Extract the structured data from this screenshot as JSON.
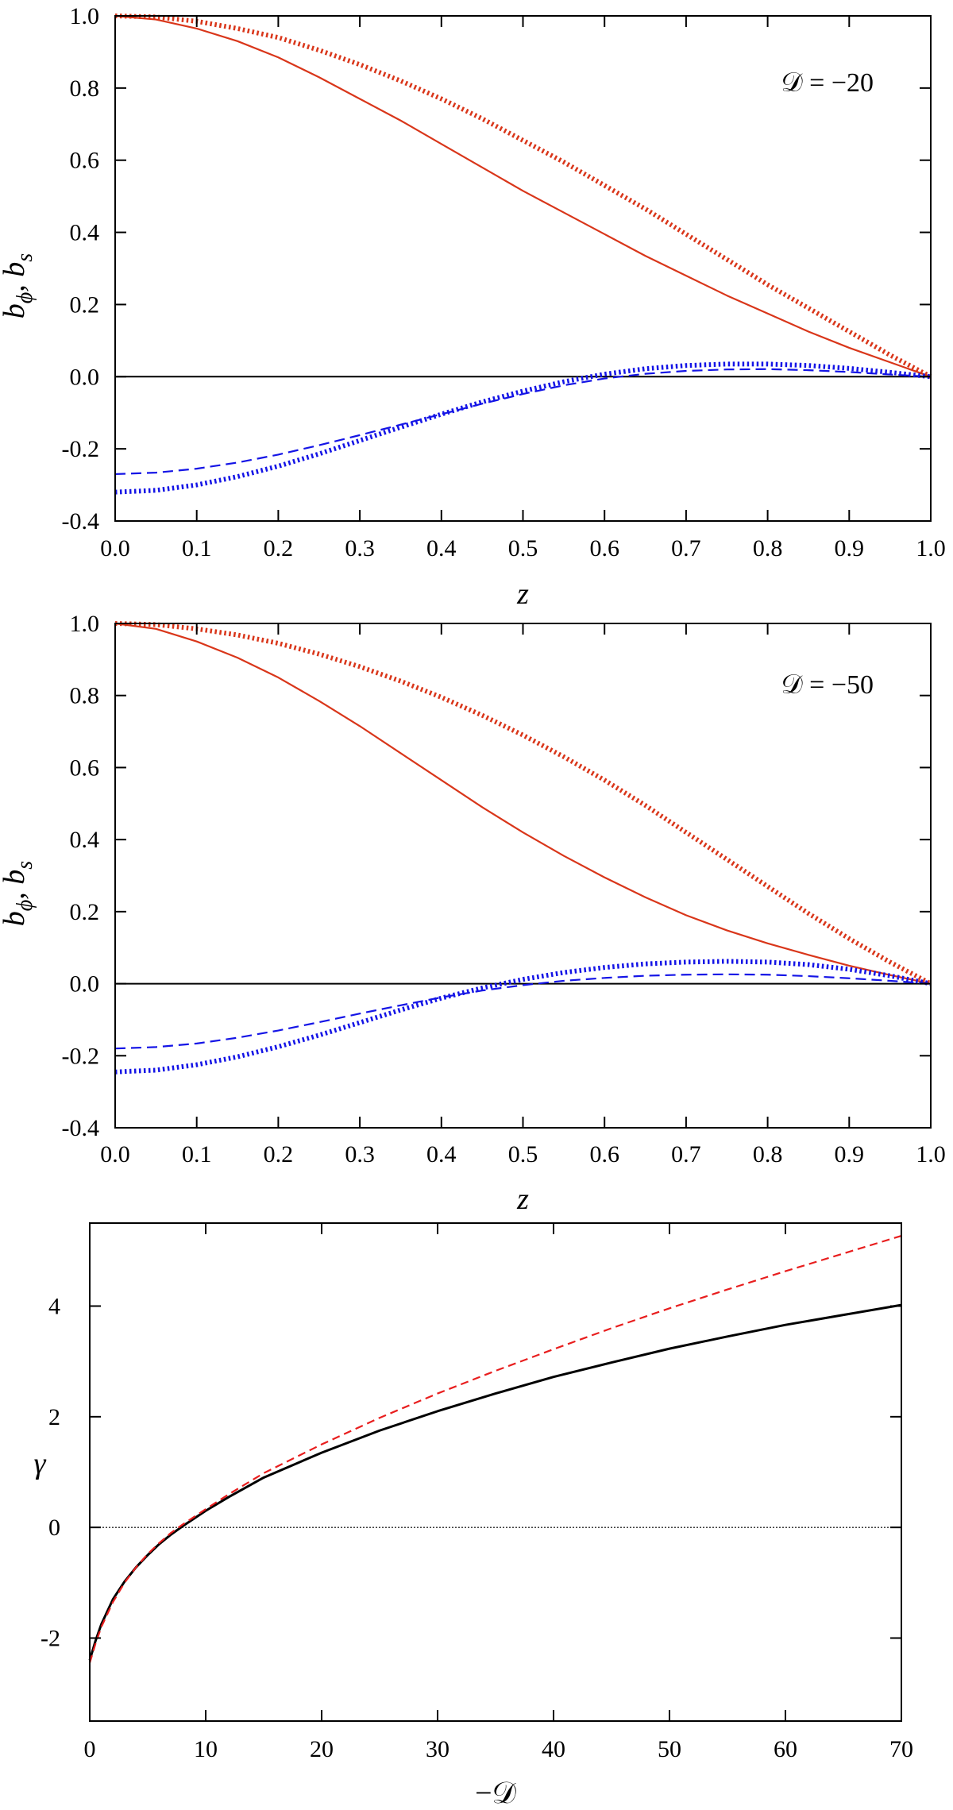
{
  "chart_data": [
    {
      "type": "line",
      "annotation": "𝒟 = −20",
      "xlabel": "z",
      "ylabel": "b_ϕ, b_s",
      "xlim": [
        0,
        1
      ],
      "ylim": [
        -0.4,
        1.0
      ],
      "xticks": [
        "0.0",
        "0.1",
        "0.2",
        "0.3",
        "0.4",
        "0.5",
        "0.6",
        "0.7",
        "0.8",
        "0.9",
        "1.0"
      ],
      "yticks": [
        "-0.4",
        "-0.2",
        "0.0",
        "0.2",
        "0.4",
        "0.6",
        "0.8",
        "1.0"
      ],
      "zero_line": true,
      "series": [
        {
          "color": "#d9361a",
          "style": "solid",
          "x": [
            0,
            0.05,
            0.1,
            0.15,
            0.2,
            0.25,
            0.3,
            0.35,
            0.4,
            0.45,
            0.5,
            0.55,
            0.6,
            0.65,
            0.7,
            0.75,
            0.8,
            0.85,
            0.9,
            0.95,
            1.0
          ],
          "y": [
            1.0,
            0.99,
            0.965,
            0.93,
            0.885,
            0.83,
            0.77,
            0.71,
            0.645,
            0.58,
            0.515,
            0.455,
            0.395,
            0.335,
            0.28,
            0.225,
            0.175,
            0.125,
            0.08,
            0.04,
            0.0
          ]
        },
        {
          "color": "#d9361a",
          "style": "dotted",
          "x": [
            0,
            0.05,
            0.1,
            0.15,
            0.2,
            0.25,
            0.3,
            0.35,
            0.4,
            0.45,
            0.5,
            0.55,
            0.6,
            0.65,
            0.7,
            0.75,
            0.8,
            0.85,
            0.9,
            0.95,
            1.0
          ],
          "y": [
            1.0,
            0.997,
            0.985,
            0.965,
            0.94,
            0.905,
            0.865,
            0.82,
            0.77,
            0.715,
            0.655,
            0.595,
            0.53,
            0.465,
            0.395,
            0.325,
            0.255,
            0.19,
            0.125,
            0.06,
            0.0
          ]
        },
        {
          "color": "#1414e6",
          "style": "dashed",
          "x": [
            0,
            0.05,
            0.1,
            0.15,
            0.2,
            0.25,
            0.3,
            0.35,
            0.4,
            0.45,
            0.5,
            0.55,
            0.6,
            0.65,
            0.7,
            0.75,
            0.8,
            0.85,
            0.9,
            0.95,
            1.0
          ],
          "y": [
            -0.27,
            -0.266,
            -0.255,
            -0.238,
            -0.216,
            -0.19,
            -0.162,
            -0.133,
            -0.104,
            -0.075,
            -0.048,
            -0.024,
            -0.005,
            0.008,
            0.016,
            0.02,
            0.021,
            0.018,
            0.013,
            0.006,
            0.0
          ]
        },
        {
          "color": "#1414e6",
          "style": "dotted",
          "x": [
            0,
            0.05,
            0.1,
            0.15,
            0.2,
            0.25,
            0.3,
            0.35,
            0.4,
            0.45,
            0.5,
            0.55,
            0.6,
            0.65,
            0.7,
            0.75,
            0.8,
            0.85,
            0.9,
            0.95,
            1.0
          ],
          "y": [
            -0.32,
            -0.315,
            -0.3,
            -0.277,
            -0.248,
            -0.214,
            -0.177,
            -0.14,
            -0.104,
            -0.07,
            -0.04,
            -0.014,
            0.007,
            0.022,
            0.031,
            0.035,
            0.035,
            0.031,
            0.023,
            0.012,
            0.0
          ]
        }
      ]
    },
    {
      "type": "line",
      "annotation": "𝒟 = −50",
      "xlabel": "z",
      "ylabel": "b_ϕ, b_s",
      "xlim": [
        0,
        1
      ],
      "ylim": [
        -0.4,
        1.0
      ],
      "xticks": [
        "0.0",
        "0.1",
        "0.2",
        "0.3",
        "0.4",
        "0.5",
        "0.6",
        "0.7",
        "0.8",
        "0.9",
        "1.0"
      ],
      "yticks": [
        "-0.4",
        "-0.2",
        "0.0",
        "0.2",
        "0.4",
        "0.6",
        "0.8",
        "1.0"
      ],
      "zero_line": true,
      "series": [
        {
          "color": "#d9361a",
          "style": "solid",
          "x": [
            0,
            0.05,
            0.1,
            0.15,
            0.2,
            0.25,
            0.3,
            0.35,
            0.4,
            0.45,
            0.5,
            0.55,
            0.6,
            0.65,
            0.7,
            0.75,
            0.8,
            0.85,
            0.9,
            0.95,
            1.0
          ],
          "y": [
            1.0,
            0.985,
            0.95,
            0.905,
            0.85,
            0.785,
            0.715,
            0.64,
            0.565,
            0.49,
            0.42,
            0.355,
            0.295,
            0.24,
            0.19,
            0.148,
            0.112,
            0.08,
            0.05,
            0.024,
            0.0
          ]
        },
        {
          "color": "#d9361a",
          "style": "dotted",
          "x": [
            0,
            0.05,
            0.1,
            0.15,
            0.2,
            0.25,
            0.3,
            0.35,
            0.4,
            0.45,
            0.5,
            0.55,
            0.6,
            0.65,
            0.7,
            0.75,
            0.8,
            0.85,
            0.9,
            0.95,
            1.0
          ],
          "y": [
            1.0,
            0.997,
            0.985,
            0.968,
            0.945,
            0.915,
            0.88,
            0.84,
            0.795,
            0.745,
            0.69,
            0.63,
            0.565,
            0.495,
            0.42,
            0.345,
            0.27,
            0.195,
            0.125,
            0.06,
            0.0
          ]
        },
        {
          "color": "#1414e6",
          "style": "dashed",
          "x": [
            0,
            0.05,
            0.1,
            0.15,
            0.2,
            0.25,
            0.3,
            0.35,
            0.4,
            0.45,
            0.5,
            0.55,
            0.6,
            0.65,
            0.7,
            0.75,
            0.8,
            0.85,
            0.9,
            0.95,
            1.0
          ],
          "y": [
            -0.18,
            -0.176,
            -0.166,
            -0.15,
            -0.13,
            -0.107,
            -0.083,
            -0.06,
            -0.038,
            -0.019,
            -0.004,
            0.008,
            0.016,
            0.022,
            0.025,
            0.026,
            0.025,
            0.021,
            0.015,
            0.008,
            0.0
          ]
        },
        {
          "color": "#1414e6",
          "style": "dotted",
          "x": [
            0,
            0.05,
            0.1,
            0.15,
            0.2,
            0.25,
            0.3,
            0.35,
            0.4,
            0.45,
            0.5,
            0.55,
            0.6,
            0.65,
            0.7,
            0.75,
            0.8,
            0.85,
            0.9,
            0.95,
            1.0
          ],
          "y": [
            -0.245,
            -0.24,
            -0.225,
            -0.203,
            -0.175,
            -0.143,
            -0.108,
            -0.073,
            -0.04,
            -0.012,
            0.012,
            0.031,
            0.045,
            0.055,
            0.06,
            0.062,
            0.06,
            0.053,
            0.04,
            0.022,
            0.0
          ]
        }
      ]
    },
    {
      "type": "line",
      "xlabel": "−𝒟",
      "ylabel": "γ",
      "xlim": [
        0,
        70
      ],
      "ylim": [
        -3.5,
        5.5
      ],
      "xticks": [
        "0",
        "10",
        "20",
        "30",
        "40",
        "50",
        "60",
        "70"
      ],
      "yticks": [
        "-2",
        "0",
        "2",
        "4"
      ],
      "zero_line": true,
      "series": [
        {
          "color": "#000000",
          "style": "solid",
          "x": [
            0,
            0.5,
            1,
            2,
            3,
            4,
            5,
            6,
            7,
            8,
            9,
            10,
            12,
            15,
            20,
            25,
            30,
            35,
            40,
            45,
            50,
            55,
            60,
            65,
            70
          ],
          "y": [
            -2.4,
            -2.05,
            -1.75,
            -1.3,
            -0.98,
            -0.72,
            -0.5,
            -0.3,
            -0.13,
            0.02,
            0.16,
            0.3,
            0.55,
            0.9,
            1.35,
            1.75,
            2.1,
            2.42,
            2.72,
            2.98,
            3.23,
            3.45,
            3.66,
            3.84,
            4.02
          ]
        },
        {
          "color": "#e81e1e",
          "style": "dashed",
          "x": [
            0,
            0.5,
            1,
            2,
            3,
            4,
            5,
            6,
            7,
            8,
            9,
            10,
            12,
            15,
            20,
            25,
            30,
            35,
            40,
            45,
            50,
            55,
            60,
            65,
            70
          ],
          "y": [
            -2.45,
            -2.1,
            -1.8,
            -1.35,
            -1.0,
            -0.72,
            -0.48,
            -0.28,
            -0.1,
            0.05,
            0.19,
            0.33,
            0.6,
            0.98,
            1.5,
            1.98,
            2.42,
            2.83,
            3.22,
            3.6,
            3.96,
            4.3,
            4.63,
            4.95,
            5.27
          ]
        }
      ]
    }
  ]
}
